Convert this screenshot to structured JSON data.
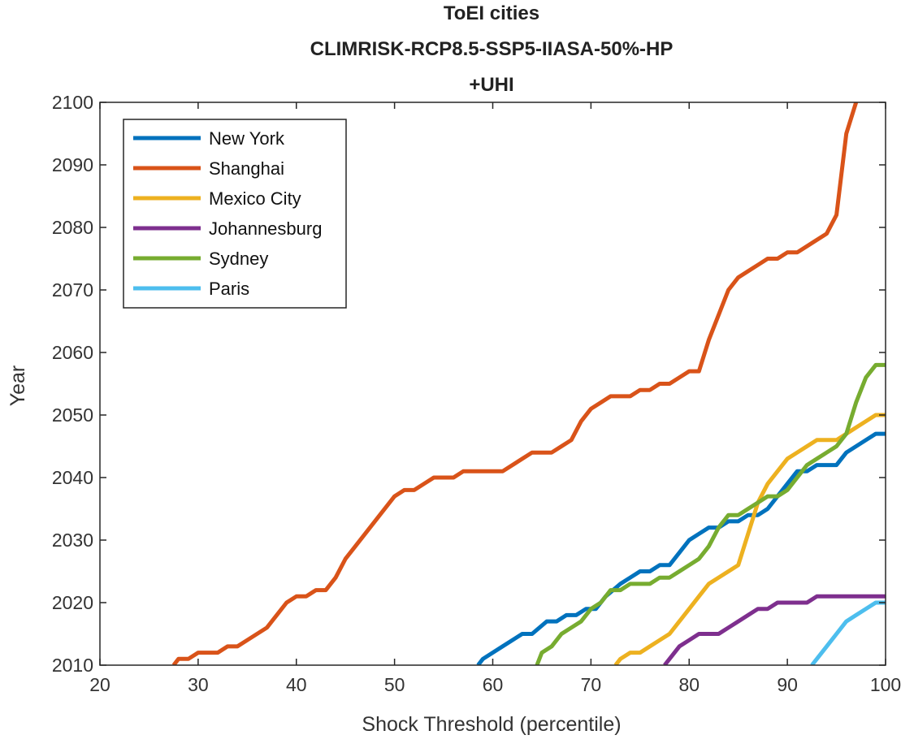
{
  "chart_data": {
    "type": "line",
    "title_lines": [
      "ToEI cities",
      "CLIMRISK-RCP8.5-SSP5-IIASA-50%-HP",
      "+UHI"
    ],
    "xlabel": "Shock Threshold (percentile)",
    "ylabel": "Year",
    "xlim": [
      20,
      100
    ],
    "ylim": [
      2010,
      2100
    ],
    "xticks": [
      "20",
      "30",
      "40",
      "50",
      "60",
      "70",
      "80",
      "90",
      "100"
    ],
    "yticks": [
      "2010",
      "2020",
      "2030",
      "2040",
      "2050",
      "2060",
      "2070",
      "2080",
      "2090",
      "2100"
    ],
    "grid": false,
    "legend_position": "top-left",
    "series": [
      {
        "name": "New York",
        "color": "#0072BD",
        "points": [
          [
            58.5,
            2010
          ],
          [
            59,
            2011
          ],
          [
            61,
            2013
          ],
          [
            63,
            2015
          ],
          [
            64,
            2015
          ],
          [
            65.5,
            2017
          ],
          [
            66.5,
            2017
          ],
          [
            67.5,
            2018
          ],
          [
            68.5,
            2018
          ],
          [
            69.5,
            2019
          ],
          [
            70.5,
            2019
          ],
          [
            71.5,
            2021
          ],
          [
            73,
            2023
          ],
          [
            74,
            2024
          ],
          [
            75,
            2025
          ],
          [
            76,
            2025
          ],
          [
            77,
            2026
          ],
          [
            78,
            2026
          ],
          [
            79,
            2028
          ],
          [
            80,
            2030
          ],
          [
            81,
            2031
          ],
          [
            82,
            2032
          ],
          [
            83,
            2032
          ],
          [
            84,
            2033
          ],
          [
            85,
            2033
          ],
          [
            86,
            2034
          ],
          [
            87,
            2034
          ],
          [
            88,
            2035
          ],
          [
            89,
            2037
          ],
          [
            90,
            2039
          ],
          [
            91,
            2041
          ],
          [
            92,
            2041
          ],
          [
            93,
            2042
          ],
          [
            95,
            2042
          ],
          [
            96,
            2044
          ],
          [
            98,
            2046
          ],
          [
            99,
            2047
          ],
          [
            100,
            2047
          ]
        ]
      },
      {
        "name": "Shanghai",
        "color": "#D95319",
        "points": [
          [
            27.5,
            2010
          ],
          [
            28,
            2011
          ],
          [
            29,
            2011
          ],
          [
            30,
            2012
          ],
          [
            32,
            2012
          ],
          [
            33,
            2013
          ],
          [
            34,
            2013
          ],
          [
            35,
            2014
          ],
          [
            37,
            2016
          ],
          [
            38,
            2018
          ],
          [
            39,
            2020
          ],
          [
            40,
            2021
          ],
          [
            41,
            2021
          ],
          [
            42,
            2022
          ],
          [
            43,
            2022
          ],
          [
            44,
            2024
          ],
          [
            45,
            2027
          ],
          [
            46,
            2029
          ],
          [
            48,
            2033
          ],
          [
            50,
            2037
          ],
          [
            51,
            2038
          ],
          [
            52,
            2038
          ],
          [
            53,
            2039
          ],
          [
            54,
            2040
          ],
          [
            56,
            2040
          ],
          [
            57,
            2041
          ],
          [
            61,
            2041
          ],
          [
            62,
            2042
          ],
          [
            63,
            2043
          ],
          [
            64,
            2044
          ],
          [
            66,
            2044
          ],
          [
            67,
            2045
          ],
          [
            68,
            2046
          ],
          [
            69,
            2049
          ],
          [
            70,
            2051
          ],
          [
            71,
            2052
          ],
          [
            72,
            2053
          ],
          [
            74,
            2053
          ],
          [
            75,
            2054
          ],
          [
            76,
            2054
          ],
          [
            77,
            2055
          ],
          [
            78,
            2055
          ],
          [
            79,
            2056
          ],
          [
            80,
            2057
          ],
          [
            81,
            2057
          ],
          [
            82,
            2062
          ],
          [
            83,
            2066
          ],
          [
            84,
            2070
          ],
          [
            85,
            2072
          ],
          [
            86,
            2073
          ],
          [
            87,
            2074
          ],
          [
            88,
            2075
          ],
          [
            89,
            2075
          ],
          [
            90,
            2076
          ],
          [
            91,
            2076
          ],
          [
            92,
            2077
          ],
          [
            93,
            2078
          ],
          [
            94,
            2079
          ],
          [
            95,
            2082
          ],
          [
            96,
            2095
          ],
          [
            97,
            2100
          ]
        ]
      },
      {
        "name": "Mexico City",
        "color": "#EDB120",
        "points": [
          [
            72.5,
            2010
          ],
          [
            73,
            2011
          ],
          [
            74,
            2012
          ],
          [
            75,
            2012
          ],
          [
            76,
            2013
          ],
          [
            77,
            2014
          ],
          [
            78,
            2015
          ],
          [
            79,
            2017
          ],
          [
            80,
            2019
          ],
          [
            81,
            2021
          ],
          [
            82,
            2023
          ],
          [
            83,
            2024
          ],
          [
            84,
            2025
          ],
          [
            85,
            2026
          ],
          [
            86,
            2031
          ],
          [
            87,
            2036
          ],
          [
            88,
            2039
          ],
          [
            89,
            2041
          ],
          [
            90,
            2043
          ],
          [
            91,
            2044
          ],
          [
            92,
            2045
          ],
          [
            93,
            2046
          ],
          [
            95,
            2046
          ],
          [
            96,
            2047
          ],
          [
            97,
            2048
          ],
          [
            98,
            2049
          ],
          [
            99,
            2050
          ],
          [
            100,
            2050
          ]
        ]
      },
      {
        "name": "Johannesburg",
        "color": "#7E2F8E",
        "points": [
          [
            77.5,
            2010
          ],
          [
            78,
            2011
          ],
          [
            79,
            2013
          ],
          [
            80,
            2014
          ],
          [
            81,
            2015
          ],
          [
            83,
            2015
          ],
          [
            84,
            2016
          ],
          [
            85,
            2017
          ],
          [
            86,
            2018
          ],
          [
            87,
            2019
          ],
          [
            88,
            2019
          ],
          [
            89,
            2020
          ],
          [
            92,
            2020
          ],
          [
            93,
            2021
          ],
          [
            100,
            2021
          ]
        ]
      },
      {
        "name": "Sydney",
        "color": "#77AC30",
        "points": [
          [
            64.5,
            2010
          ],
          [
            65,
            2012
          ],
          [
            66,
            2013
          ],
          [
            67,
            2015
          ],
          [
            68,
            2016
          ],
          [
            69,
            2017
          ],
          [
            70,
            2019
          ],
          [
            71,
            2020
          ],
          [
            72,
            2022
          ],
          [
            73,
            2022
          ],
          [
            74,
            2023
          ],
          [
            76,
            2023
          ],
          [
            77,
            2024
          ],
          [
            78,
            2024
          ],
          [
            79,
            2025
          ],
          [
            80,
            2026
          ],
          [
            81,
            2027
          ],
          [
            82,
            2029
          ],
          [
            83,
            2032
          ],
          [
            84,
            2034
          ],
          [
            85,
            2034
          ],
          [
            86,
            2035
          ],
          [
            87,
            2036
          ],
          [
            88,
            2037
          ],
          [
            89,
            2037
          ],
          [
            90,
            2038
          ],
          [
            91,
            2040
          ],
          [
            92,
            2042
          ],
          [
            93,
            2043
          ],
          [
            94,
            2044
          ],
          [
            95,
            2045
          ],
          [
            96,
            2047
          ],
          [
            97,
            2052
          ],
          [
            98,
            2056
          ],
          [
            99,
            2058
          ],
          [
            100,
            2058
          ]
        ]
      },
      {
        "name": "Paris",
        "color": "#4DBEEE",
        "points": [
          [
            92.5,
            2010
          ],
          [
            93,
            2011
          ],
          [
            94,
            2013
          ],
          [
            95,
            2015
          ],
          [
            96,
            2017
          ],
          [
            97,
            2018
          ],
          [
            98,
            2019
          ],
          [
            99,
            2020
          ],
          [
            100,
            2020
          ]
        ]
      }
    ]
  }
}
